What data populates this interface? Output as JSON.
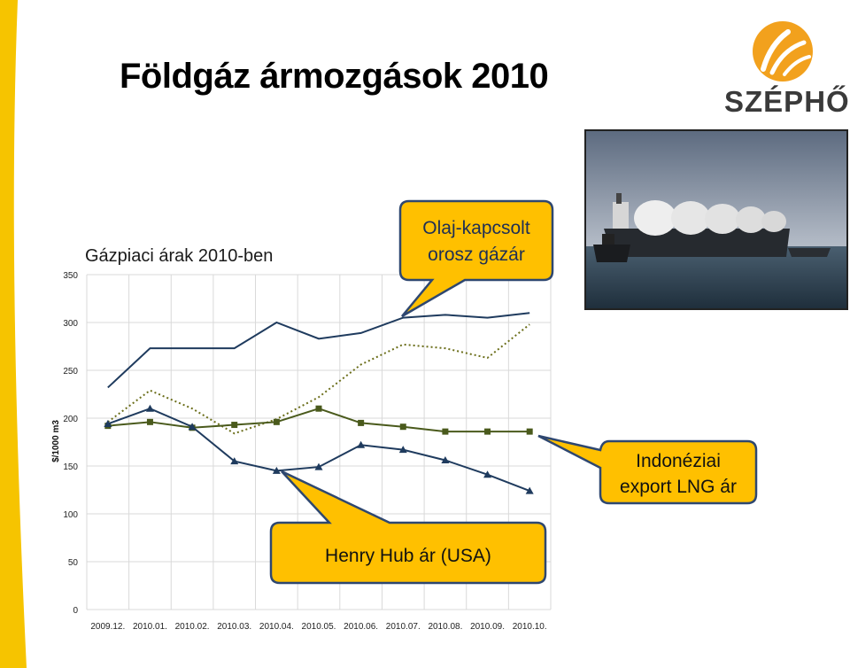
{
  "slide": {
    "title": "Földgáz ármozgások 2010",
    "logo_text": "SZÉPHŐ"
  },
  "colors": {
    "left_stripe": "#f6c400",
    "callout_fill": "#ffc000",
    "callout_border": "#2e4770",
    "series_dark_blue": "#1f3b5e",
    "series_olive": "#4a5a1c",
    "series_dotted": "#6b6e1a",
    "logo_orange": "#f2a11d"
  },
  "callouts": {
    "oil_linked": [
      "Olaj-kapcsolt",
      "orosz gázár"
    ],
    "indonesian": [
      "Indonéziai",
      "export LNG ár"
    ],
    "henry_hub": "Henry Hub ár (USA)"
  },
  "chart_data": {
    "type": "line",
    "title": "Gázpiaci árak 2010-ben",
    "ylabel": "$/1000 m3",
    "xlabel": "",
    "ylim": [
      0,
      350
    ],
    "yticks": [
      0,
      50,
      100,
      150,
      200,
      250,
      300,
      350
    ],
    "grid": true,
    "categories": [
      "2009.12.",
      "2010.01.",
      "2010.02.",
      "2010.03.",
      "2010.04.",
      "2010.05.",
      "2010.06.",
      "2010.07.",
      "2010.08.",
      "2010.09.",
      "2010.10."
    ],
    "series": [
      {
        "name": "",
        "style": "solid",
        "marker": "none",
        "color": "#1f3b5e",
        "values": [
          232,
          273,
          273,
          273,
          300,
          283,
          289,
          305,
          308,
          305,
          310
        ]
      },
      {
        "name": "",
        "style": "dotted",
        "marker": "none",
        "color": "#6b6e1a",
        "values": [
          196,
          229,
          210,
          184,
          199,
          222,
          256,
          277,
          273,
          263,
          298
        ]
      },
      {
        "name": "",
        "style": "solid",
        "marker": "square",
        "color": "#4a5a1c",
        "values": [
          192,
          196,
          190,
          193,
          196,
          210,
          195,
          191,
          186,
          186,
          186
        ]
      },
      {
        "name": "",
        "style": "solid",
        "marker": "triangle",
        "color": "#1f3b5e",
        "values": [
          194,
          210,
          191,
          155,
          145,
          149,
          172,
          167,
          156,
          141,
          124
        ]
      }
    ]
  }
}
